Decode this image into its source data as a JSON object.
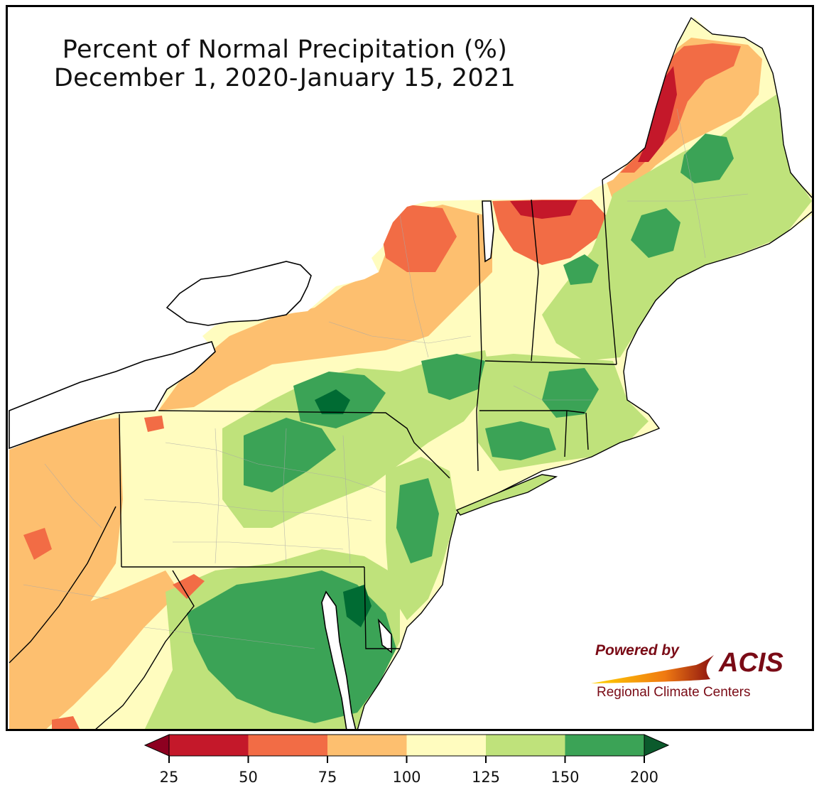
{
  "title": {
    "line1": "Percent of Normal Precipitation (%)",
    "line2": "December 1, 2020-January 15, 2021"
  },
  "logo": {
    "powered_by": "Powered by",
    "acis": "ACIS",
    "subtitle": "Regional Climate Centers"
  },
  "legend": {
    "bins": [
      {
        "from": 25,
        "to": 50,
        "color": "#c4182a"
      },
      {
        "from": 50,
        "to": 75,
        "color": "#f26c45"
      },
      {
        "from": 75,
        "to": 100,
        "color": "#fdbf6f"
      },
      {
        "from": 100,
        "to": 125,
        "color": "#fffcbf"
      },
      {
        "from": 125,
        "to": 150,
        "color": "#bfe27b"
      },
      {
        "from": 150,
        "to": 200,
        "color": "#3ba356"
      }
    ],
    "under_color": "#8d0020",
    "over_color": "#0b5a2c",
    "tick_labels": [
      "25",
      "50",
      "75",
      "100",
      "125",
      "150",
      "200"
    ]
  },
  "colors": {
    "state_border": "#000000",
    "county_border": "#a8a8a8",
    "water": "#ffffff",
    "dark_green": "#006b33"
  }
}
